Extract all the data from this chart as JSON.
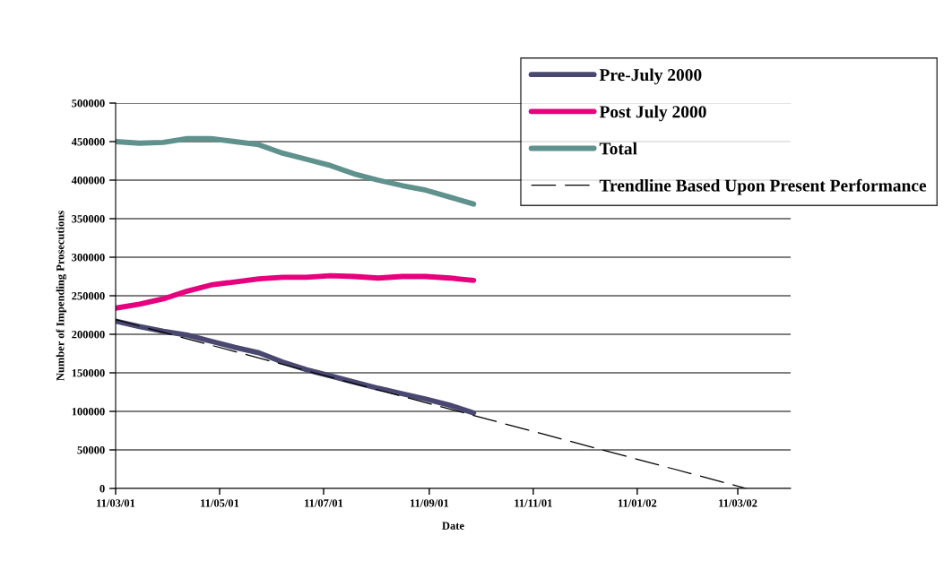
{
  "chart_data": {
    "type": "line",
    "xlabel": "Date",
    "ylabel": "Number of Impending Prosecutions",
    "x": [
      "2001-03-11",
      "2001-03-25",
      "2001-04-08",
      "2001-04-22",
      "2001-05-06",
      "2001-05-20",
      "2001-06-03",
      "2001-06-17",
      "2001-07-01",
      "2001-07-15",
      "2001-07-29",
      "2001-08-12",
      "2001-08-26",
      "2001-09-09",
      "2001-09-23",
      "2001-10-07"
    ],
    "series": [
      {
        "name": "Pre-July 2000",
        "color": "#4a4870",
        "values": [
          217000,
          210000,
          204000,
          199000,
          191000,
          183000,
          176000,
          164000,
          154000,
          146000,
          138000,
          130000,
          123000,
          116000,
          108000,
          98000
        ]
      },
      {
        "name": "Post July 2000",
        "color": "#e6007e",
        "values": [
          234000,
          239000,
          246000,
          256000,
          264000,
          268000,
          272000,
          274000,
          274000,
          276000,
          275000,
          273000,
          275000,
          275000,
          273000,
          270000
        ]
      },
      {
        "name": "Total",
        "color": "#5f918d",
        "values": [
          450000,
          448000,
          449000,
          454000,
          454000,
          450000,
          446000,
          435000,
          427000,
          419000,
          408000,
          400000,
          393000,
          387000,
          378000,
          369000
        ]
      },
      {
        "name": "Trendline Based Upon Present Performance",
        "type": "line",
        "line_style": "dashed",
        "color": "#000000",
        "x": [
          "2001-03-11",
          "2002-03-16"
        ],
        "values": [
          219000,
          0
        ]
      }
    ],
    "xlim": [
      "2001-03-11",
      "2002-04-11"
    ],
    "xticks": [
      {
        "value": "2001-03-11",
        "label": "11/03/01"
      },
      {
        "value": "2001-05-11",
        "label": "11/05/01"
      },
      {
        "value": "2001-07-11",
        "label": "11/07/01"
      },
      {
        "value": "2001-09-11",
        "label": "11/09/01"
      },
      {
        "value": "2001-11-11",
        "label": "11/11/01"
      },
      {
        "value": "2002-01-11",
        "label": "11/01/02"
      },
      {
        "value": "2002-03-11",
        "label": "11/03/02"
      }
    ],
    "ylim": [
      0,
      500000
    ],
    "yticks": [
      0,
      50000,
      100000,
      150000,
      200000,
      250000,
      300000,
      350000,
      400000,
      450000,
      500000
    ],
    "grid": "y",
    "legend": "top right"
  }
}
